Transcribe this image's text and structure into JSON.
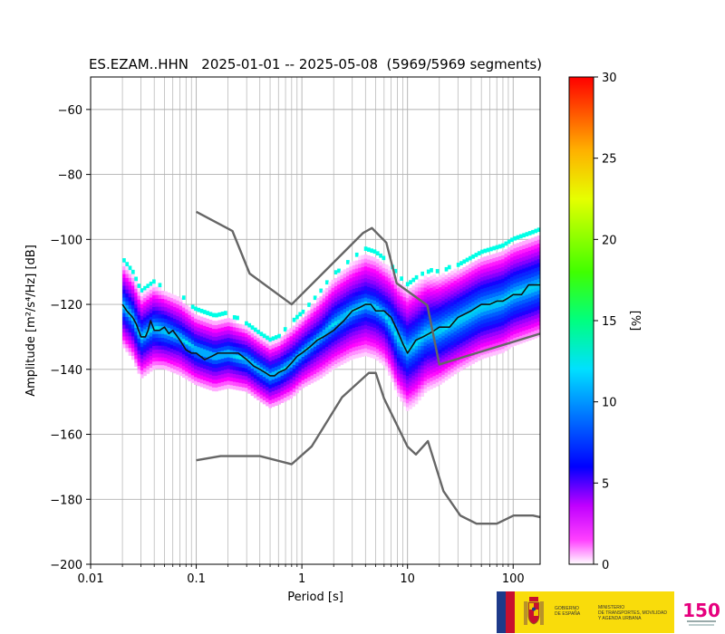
{
  "chart_data": {
    "type": "heatmap",
    "subtype": "probabilistic power spectral density",
    "title": "ES.EZAM..HHN   2025-01-01 -- 2025-05-08  (5969/5969 segments)",
    "xlabel": "Period [s]",
    "ylabel": "Amplitude [m²/s⁴/Hz] [dB]",
    "x_scale": "log",
    "xlim": [
      0.01,
      180
    ],
    "ylim": [
      -200,
      -50
    ],
    "x_ticks": [
      0.01,
      0.1,
      1,
      10,
      100
    ],
    "x_tick_labels": [
      "0.01",
      "0.1",
      "1",
      "10",
      "100"
    ],
    "y_ticks": [
      -200,
      -180,
      -160,
      -140,
      -120,
      -100,
      -80,
      -60
    ],
    "y_tick_labels": [
      "−200",
      "−180",
      "−160",
      "−140",
      "−120",
      "−100",
      "−80",
      "−60"
    ],
    "grid": true,
    "colorbar": {
      "label": "[%]",
      "range": [
        0,
        30
      ],
      "ticks": [
        0,
        5,
        10,
        15,
        20,
        25,
        30
      ],
      "tick_labels": [
        "0",
        "5",
        "10",
        "15",
        "20",
        "25",
        "30"
      ]
    },
    "density_color_range_percent": [
      0,
      10
    ],
    "density_band": {
      "x": [
        0.02,
        0.025,
        0.03,
        0.04,
        0.05,
        0.07,
        0.1,
        0.15,
        0.2,
        0.3,
        0.4,
        0.5,
        0.6,
        0.8,
        1,
        1.5,
        2,
        3,
        4,
        5,
        6,
        7,
        8,
        10,
        12,
        15,
        20,
        30,
        50,
        80,
        100,
        150,
        180
      ],
      "center": [
        -120,
        -124,
        -130,
        -127,
        -128,
        -130,
        -134,
        -136,
        -135,
        -137,
        -140,
        -142,
        -141,
        -138,
        -135,
        -130,
        -126,
        -122,
        -120,
        -121,
        -123,
        -126,
        -130,
        -134,
        -132,
        -129,
        -128,
        -125,
        -121,
        -119,
        -117,
        -115,
        -114
      ],
      "outer_half_width": [
        14,
        14,
        14,
        14,
        13,
        13,
        12,
        12,
        12,
        11,
        11,
        11,
        11,
        12,
        12,
        14,
        15,
        16,
        17,
        17,
        17,
        18,
        19,
        20,
        20,
        19,
        18,
        17,
        17,
        17,
        17,
        17,
        17
      ],
      "core_half_width": [
        4,
        4,
        4,
        4,
        4,
        3,
        3,
        3,
        3,
        3,
        3,
        3,
        3,
        3,
        3,
        3,
        4,
        4,
        4,
        4,
        4,
        5,
        6,
        6,
        6,
        6,
        6,
        6,
        6,
        6,
        6,
        6,
        6
      ]
    },
    "series": [
      {
        "role": "mode",
        "color": "#111111",
        "x": [
          0.02,
          0.022,
          0.025,
          0.027,
          0.03,
          0.033,
          0.035,
          0.037,
          0.04,
          0.045,
          0.05,
          0.055,
          0.06,
          0.07,
          0.08,
          0.09,
          0.1,
          0.12,
          0.14,
          0.16,
          0.18,
          0.2,
          0.25,
          0.3,
          0.35,
          0.4,
          0.45,
          0.5,
          0.55,
          0.6,
          0.7,
          0.8,
          0.9,
          1,
          1.2,
          1.4,
          1.6,
          2,
          2.5,
          3,
          3.5,
          4,
          4.5,
          5,
          6,
          7,
          8,
          9,
          10,
          11,
          12,
          14,
          16,
          18,
          20,
          25,
          30,
          40,
          50,
          60,
          70,
          80,
          90,
          100,
          120,
          140,
          160,
          180
        ],
        "y": [
          -120,
          -122,
          -124,
          -126,
          -130,
          -130,
          -128,
          -125,
          -128,
          -128,
          -127,
          -129,
          -128,
          -131,
          -134,
          -135,
          -135,
          -137,
          -136,
          -135,
          -135,
          -135,
          -135,
          -137,
          -139,
          -140,
          -141,
          -142,
          -142,
          -141,
          -140,
          -138,
          -136,
          -135,
          -133,
          -131,
          -130,
          -128,
          -125,
          -122,
          -121,
          -120,
          -120,
          -122,
          -122,
          -124,
          -128,
          -132,
          -135,
          -133,
          -131,
          -130,
          -129,
          -128,
          -127,
          -127,
          -124,
          -122,
          -120,
          -120,
          -119,
          -119,
          -118,
          -117,
          -117,
          -114,
          -114,
          -114
        ]
      },
      {
        "role": "high-noise-model",
        "color": "#666666",
        "x": [
          0.1,
          0.22,
          0.32,
          0.8,
          3.8,
          4.6,
          6.3,
          7.9,
          15.4,
          20,
          180
        ],
        "y": [
          -91.5,
          -97.4,
          -110.5,
          -120,
          -98,
          -96.5,
          -101,
          -113.5,
          -120.3,
          -138.5,
          -129
        ]
      },
      {
        "role": "low-noise-model",
        "color": "#666666",
        "x": [
          0.1,
          0.17,
          0.4,
          0.8,
          1.24,
          2.4,
          4.3,
          5,
          6,
          10,
          12,
          15.6,
          21.9,
          31.6,
          45,
          70,
          101,
          154,
          180
        ],
        "y": [
          -168,
          -166.7,
          -166.7,
          -169.2,
          -163.7,
          -148.6,
          -141.1,
          -141.1,
          -149,
          -163.8,
          -166.2,
          -162.1,
          -177.5,
          -185,
          -187.5,
          -187.5,
          -185,
          -185,
          -185.5
        ]
      }
    ]
  },
  "logos": {
    "gov_line1": "GOBIERNO",
    "gov_line2": "DE ESPAÑA",
    "ministry_line1": "MINISTERIO",
    "ministry_line2": "DE TRANSPORTES, MOVILIDAD",
    "ministry_line3": "Y AGENDA URBANA",
    "ign_mark": "150"
  }
}
